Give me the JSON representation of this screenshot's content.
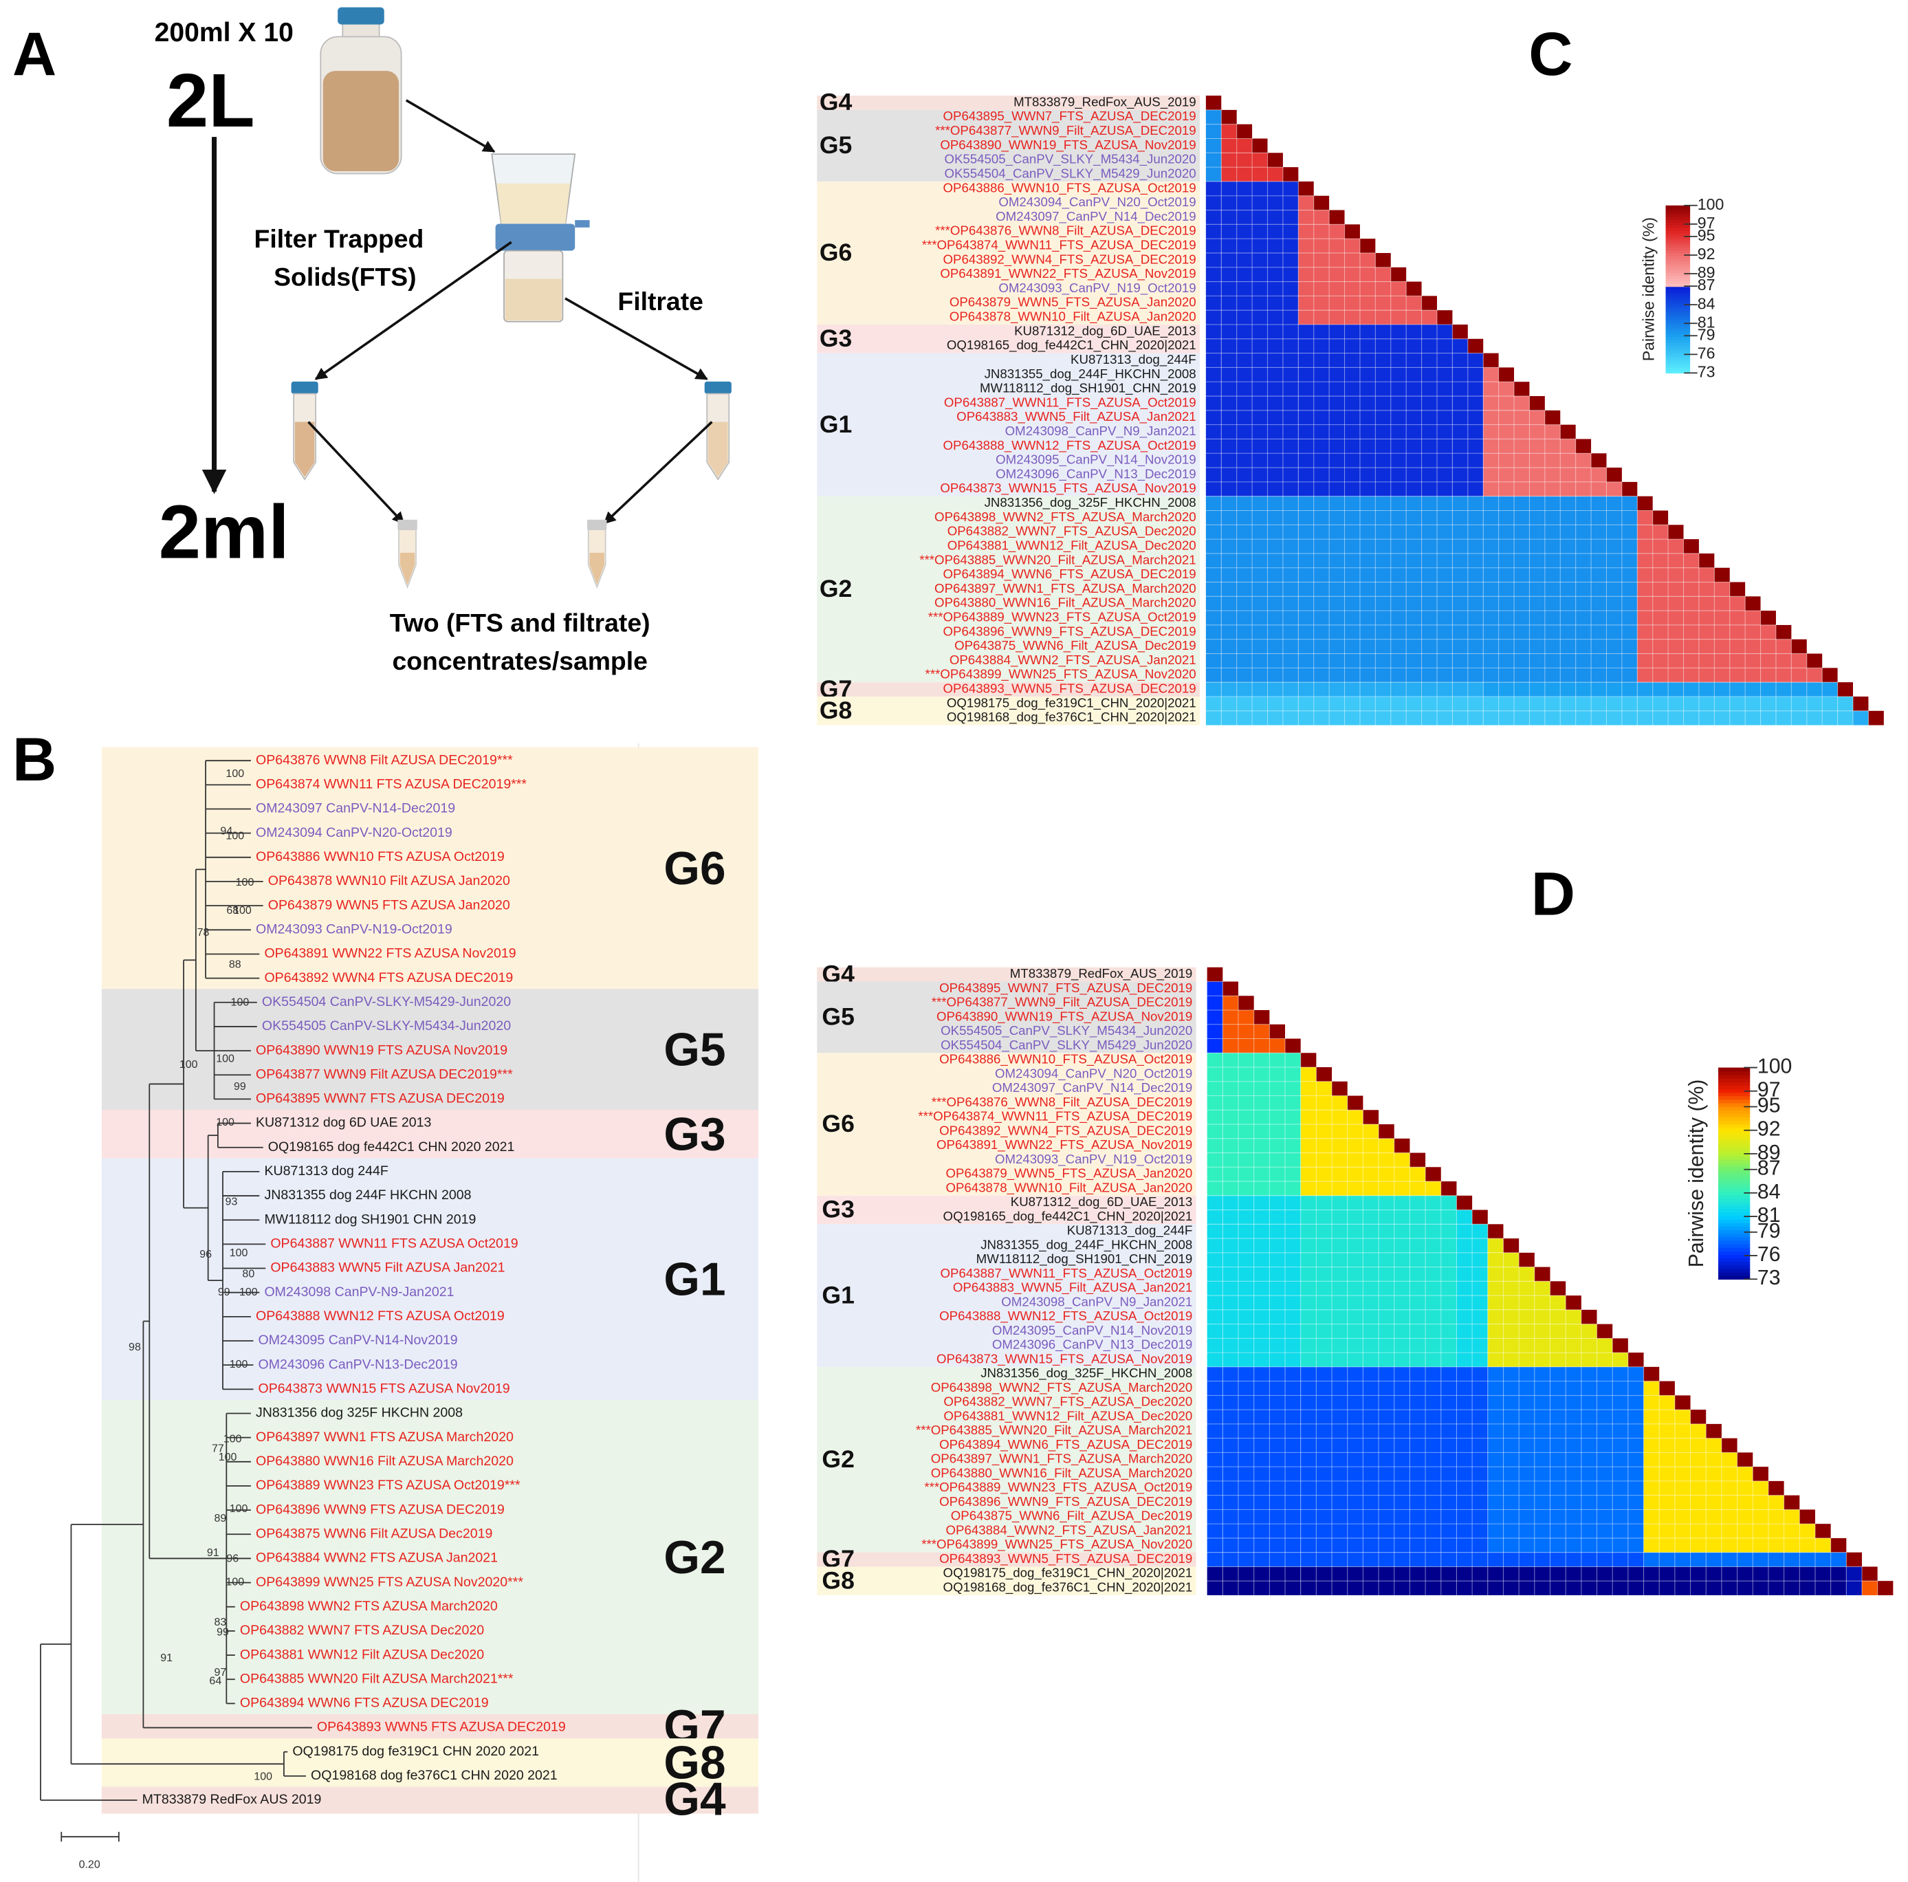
{
  "panel_a": {
    "letter": "A",
    "volume_each": "200ml X 10",
    "start_volume": "2L",
    "fts_label": [
      "Filter Trapped",
      "Solids(FTS)"
    ],
    "filtrate_label": "Filtrate",
    "end_volume": "2ml",
    "result_label": [
      "Two (FTS and filtrate)",
      "concentrates/sample"
    ]
  },
  "panel_b": {
    "letter": "B",
    "scale": "0.20",
    "bootstrap": [
      100,
      94,
      100,
      100,
      68,
      100,
      78,
      88,
      100,
      100,
      99,
      100,
      100,
      93,
      96,
      100,
      80,
      99,
      100,
      100,
      98,
      100,
      77,
      100,
      89,
      100,
      91,
      96,
      100,
      83,
      99,
      97,
      64,
      91,
      100
    ],
    "groups": [
      {
        "name": "G6",
        "color": "#fdf3dd",
        "leaves": [
          {
            "label": "OP643876 WWN8 Filt AZUSA DEC2019***",
            "color": "#e8231e"
          },
          {
            "label": "OP643874 WWN11 FTS AZUSA DEC2019***",
            "color": "#e8231e"
          },
          {
            "label": "OM243097 CanPV-N14-Dec2019",
            "color": "#7a5cbf"
          },
          {
            "label": "OM243094 CanPV-N20-Oct2019",
            "color": "#7a5cbf"
          },
          {
            "label": "OP643886 WWN10 FTS AZUSA Oct2019",
            "color": "#e8231e"
          },
          {
            "label": "OP643878 WWN10 Filt AZUSA Jan2020",
            "color": "#e8231e"
          },
          {
            "label": "OP643879 WWN5 FTS AZUSA Jan2020",
            "color": "#e8231e"
          },
          {
            "label": "OM243093 CanPV-N19-Oct2019",
            "color": "#7a5cbf"
          },
          {
            "label": "OP643891 WWN22 FTS AZUSA Nov2019",
            "color": "#e8231e"
          },
          {
            "label": "OP643892 WWN4 FTS AZUSA DEC2019",
            "color": "#e8231e"
          }
        ]
      },
      {
        "name": "G5",
        "color": "#e2e2e2",
        "leaves": [
          {
            "label": "OK554504 CanPV-SLKY-M5429-Jun2020",
            "color": "#7a5cbf"
          },
          {
            "label": "OK554505 CanPV-SLKY-M5434-Jun2020",
            "color": "#7a5cbf"
          },
          {
            "label": "OP643890 WWN19 FTS AZUSA Nov2019",
            "color": "#e8231e"
          },
          {
            "label": "OP643877 WWN9 Filt AZUSA DEC2019***",
            "color": "#e8231e"
          },
          {
            "label": "OP643895 WWN7 FTS AZUSA DEC2019",
            "color": "#e8231e"
          }
        ]
      },
      {
        "name": "G3",
        "color": "#fbe3e3",
        "leaves": [
          {
            "label": "KU871312 dog 6D UAE 2013",
            "color": "#1a1a1a"
          },
          {
            "label": "OQ198165 dog fe442C1 CHN 2020 2021",
            "color": "#1a1a1a"
          }
        ]
      },
      {
        "name": "G1",
        "color": "#e9edf8",
        "leaves": [
          {
            "label": "KU871313 dog 244F",
            "color": "#1a1a1a"
          },
          {
            "label": "JN831355 dog 244F HKCHN 2008",
            "color": "#1a1a1a"
          },
          {
            "label": "MW118112 dog SH1901 CHN 2019",
            "color": "#1a1a1a"
          },
          {
            "label": "OP643887 WWN11 FTS AZUSA Oct2019",
            "color": "#e8231e"
          },
          {
            "label": "OP643883 WWN5 Filt AZUSA Jan2021",
            "color": "#e8231e"
          },
          {
            "label": "OM243098 CanPV-N9-Jan2021",
            "color": "#7a5cbf"
          },
          {
            "label": "OP643888 WWN12 FTS AZUSA Oct2019",
            "color": "#e8231e"
          },
          {
            "label": "OM243095 CanPV-N14-Nov2019",
            "color": "#7a5cbf"
          },
          {
            "label": "OM243096 CanPV-N13-Dec2019",
            "color": "#7a5cbf"
          },
          {
            "label": "OP643873 WWN15 FTS AZUSA Nov2019",
            "color": "#e8231e"
          }
        ]
      },
      {
        "name": "G2",
        "color": "#eaf4e8",
        "leaves": [
          {
            "label": "JN831356 dog 325F HKCHN 2008",
            "color": "#1a1a1a"
          },
          {
            "label": "OP643897 WWN1 FTS AZUSA March2020",
            "color": "#e8231e"
          },
          {
            "label": "OP643880 WWN16 Filt AZUSA March2020",
            "color": "#e8231e"
          },
          {
            "label": "OP643889 WWN23 FTS AZUSA Oct2019***",
            "color": "#e8231e"
          },
          {
            "label": "OP643896 WWN9 FTS AZUSA DEC2019",
            "color": "#e8231e"
          },
          {
            "label": "OP643875 WWN6 Filt AZUSA Dec2019",
            "color": "#e8231e"
          },
          {
            "label": "OP643884 WWN2 FTS AZUSA Jan2021",
            "color": "#e8231e"
          },
          {
            "label": "OP643899 WWN25 FTS AZUSA Nov2020***",
            "color": "#e8231e"
          },
          {
            "label": "OP643898 WWN2 FTS AZUSA March2020",
            "color": "#e8231e"
          },
          {
            "label": "OP643882 WWN7 FTS AZUSA Dec2020",
            "color": "#e8231e"
          },
          {
            "label": "OP643881 WWN12 Filt AZUSA Dec2020",
            "color": "#e8231e"
          },
          {
            "label": "OP643885 WWN20 Filt AZUSA March2021***",
            "color": "#e8231e"
          },
          {
            "label": "OP643894 WWN6 FTS AZUSA DEC2019",
            "color": "#e8231e"
          }
        ]
      },
      {
        "name": "G7",
        "color": "#f7e1dc",
        "leaves": [
          {
            "label": "OP643893 WWN5 FTS AZUSA DEC2019",
            "color": "#e8231e"
          }
        ]
      },
      {
        "name": "G8",
        "color": "#fdf7dc",
        "leaves": [
          {
            "label": "OQ198175 dog fe319C1 CHN 2020 2021",
            "color": "#1a1a1a"
          },
          {
            "label": "OQ198168 dog fe376C1 CHN 2020 2021",
            "color": "#1a1a1a"
          }
        ]
      },
      {
        "name": "G4",
        "color": "#f7e1dc",
        "leaves": [
          {
            "label": "MT833879 RedFox AUS 2019",
            "color": "#1a1a1a"
          }
        ]
      }
    ]
  },
  "heatmap": {
    "groups": [
      {
        "name": "G4",
        "color": "#f7e1dc",
        "rows": [
          {
            "label": "MT833879_RedFox_AUS_2019",
            "color": "#1a1a1a"
          }
        ]
      },
      {
        "name": "G5",
        "color": "#e2e2e2",
        "rows": [
          {
            "label": "OP643895_WWN7_FTS_AZUSA_DEC2019",
            "color": "#e8231e"
          },
          {
            "label": "***OP643877_WWN9_Filt_AZUSA_DEC2019",
            "color": "#e8231e"
          },
          {
            "label": "OP643890_WWN19_FTS_AZUSA_Nov2019",
            "color": "#e8231e"
          },
          {
            "label": "OK554505_CanPV_SLKY_M5434_Jun2020",
            "color": "#7a5cbf"
          },
          {
            "label": "OK554504_CanPV_SLKY_M5429_Jun2020",
            "color": "#7a5cbf"
          }
        ]
      },
      {
        "name": "G6",
        "color": "#fdf3dd",
        "rows": [
          {
            "label": "OP643886_WWN10_FTS_AZUSA_Oct2019",
            "color": "#e8231e"
          },
          {
            "label": "OM243094_CanPV_N20_Oct2019",
            "color": "#7a5cbf"
          },
          {
            "label": "OM243097_CanPV_N14_Dec2019",
            "color": "#7a5cbf"
          },
          {
            "label": "***OP643876_WWN8_Filt_AZUSA_DEC2019",
            "color": "#e8231e"
          },
          {
            "label": "***OP643874_WWN11_FTS_AZUSA_DEC2019",
            "color": "#e8231e"
          },
          {
            "label": "OP643892_WWN4_FTS_AZUSA_DEC2019",
            "color": "#e8231e"
          },
          {
            "label": "OP643891_WWN22_FTS_AZUSA_Nov2019",
            "color": "#e8231e"
          },
          {
            "label": "OM243093_CanPV_N19_Oct2019",
            "color": "#7a5cbf"
          },
          {
            "label": "OP643879_WWN5_FTS_AZUSA_Jan2020",
            "color": "#e8231e"
          },
          {
            "label": "OP643878_WWN10_Filt_AZUSA_Jan2020",
            "color": "#e8231e"
          }
        ]
      },
      {
        "name": "G3",
        "color": "#fbe3e3",
        "rows": [
          {
            "label": "KU871312_dog_6D_UAE_2013",
            "color": "#1a1a1a"
          },
          {
            "label": "OQ198165_dog_fe442C1_CHN_2020|2021",
            "color": "#1a1a1a"
          }
        ]
      },
      {
        "name": "G1",
        "color": "#e9edf8",
        "rows": [
          {
            "label": "KU871313_dog_244F",
            "color": "#1a1a1a"
          },
          {
            "label": "JN831355_dog_244F_HKCHN_2008",
            "color": "#1a1a1a"
          },
          {
            "label": "MW118112_dog_SH1901_CHN_2019",
            "color": "#1a1a1a"
          },
          {
            "label": "OP643887_WWN11_FTS_AZUSA_Oct2019",
            "color": "#e8231e"
          },
          {
            "label": "OP643883_WWN5_Filt_AZUSA_Jan2021",
            "color": "#e8231e"
          },
          {
            "label": "OM243098_CanPV_N9_Jan2021",
            "color": "#7a5cbf"
          },
          {
            "label": "OP643888_WWN12_FTS_AZUSA_Oct2019",
            "color": "#e8231e"
          },
          {
            "label": "OM243095_CanPV_N14_Nov2019",
            "color": "#7a5cbf"
          },
          {
            "label": "OM243096_CanPV_N13_Dec2019",
            "color": "#7a5cbf"
          },
          {
            "label": "OP643873_WWN15_FTS_AZUSA_Nov2019",
            "color": "#e8231e"
          }
        ]
      },
      {
        "name": "G2",
        "color": "#eaf4e8",
        "rows": [
          {
            "label": "JN831356_dog_325F_HKCHN_2008",
            "color": "#1a1a1a"
          },
          {
            "label": "OP643898_WWN2_FTS_AZUSA_March2020",
            "color": "#e8231e"
          },
          {
            "label": "OP643882_WWN7_FTS_AZUSA_Dec2020",
            "color": "#e8231e"
          },
          {
            "label": "OP643881_WWN12_Filt_AZUSA_Dec2020",
            "color": "#e8231e"
          },
          {
            "label": "***OP643885_WWN20_Filt_AZUSA_March2021",
            "color": "#e8231e"
          },
          {
            "label": "OP643894_WWN6_FTS_AZUSA_DEC2019",
            "color": "#e8231e"
          },
          {
            "label": "OP643897_WWN1_FTS_AZUSA_March2020",
            "color": "#e8231e"
          },
          {
            "label": "OP643880_WWN16_Filt_AZUSA_March2020",
            "color": "#e8231e"
          },
          {
            "label": "***OP643889_WWN23_FTS_AZUSA_Oct2019",
            "color": "#e8231e"
          },
          {
            "label": "OP643896_WWN9_FTS_AZUSA_DEC2019",
            "color": "#e8231e"
          },
          {
            "label": "OP643875_WWN6_Filt_AZUSA_Dec2019",
            "color": "#e8231e"
          },
          {
            "label": "OP643884_WWN2_FTS_AZUSA_Jan2021",
            "color": "#e8231e"
          },
          {
            "label": "***OP643899_WWN25_FTS_AZUSA_Nov2020",
            "color": "#e8231e"
          }
        ]
      },
      {
        "name": "G7",
        "color": "#f7e1dc",
        "rows": [
          {
            "label": "OP643893_WWN5_FTS_AZUSA_DEC2019",
            "color": "#e8231e"
          }
        ]
      },
      {
        "name": "G8",
        "color": "#fdf7dc",
        "rows": [
          {
            "label": "OQ198175_dog_fe319C1_CHN_2020|2021",
            "color": "#1a1a1a"
          },
          {
            "label": "OQ198168_dog_fe376C1_CHN_2020|2021",
            "color": "#1a1a1a"
          }
        ]
      }
    ]
  },
  "panel_c": {
    "letter": "C",
    "self_identity": 100,
    "between_groups": [
      [],
      [
        80
      ],
      [
        86,
        86
      ],
      [
        86,
        86,
        86
      ],
      [
        86,
        86,
        86,
        86
      ],
      [
        80,
        80,
        80,
        80,
        80
      ],
      [
        78,
        78,
        78,
        78,
        79,
        79
      ],
      [
        76,
        76,
        76,
        76,
        76,
        76,
        76
      ]
    ],
    "within_group": [
      null,
      95,
      93,
      86,
      92,
      93,
      null,
      78
    ],
    "colorbar": {
      "title": "Pairwise identity (%)",
      "lim": [
        73,
        100
      ],
      "ticks": [
        100,
        97,
        95,
        92,
        89,
        87,
        84,
        81,
        79,
        76,
        73
      ]
    }
  },
  "panel_d": {
    "letter": "D",
    "self_identity": 100,
    "between_groups": [
      [],
      [
        76
      ],
      [
        84,
        84
      ],
      [
        82,
        82,
        83
      ],
      [
        82,
        82,
        83,
        82
      ],
      [
        77,
        77,
        77,
        77,
        78
      ],
      [
        77,
        77,
        77,
        77,
        77,
        78
      ],
      [
        73,
        73,
        73,
        73,
        73,
        73,
        74
      ]
    ],
    "within_group": [
      null,
      96,
      92,
      82,
      91,
      92,
      null,
      96
    ],
    "colorbar": {
      "title": "Pairwise identity (%)",
      "lim": [
        73,
        100
      ],
      "ticks": [
        100,
        97,
        95,
        92,
        89,
        87,
        84,
        81,
        79,
        76,
        73
      ]
    }
  }
}
